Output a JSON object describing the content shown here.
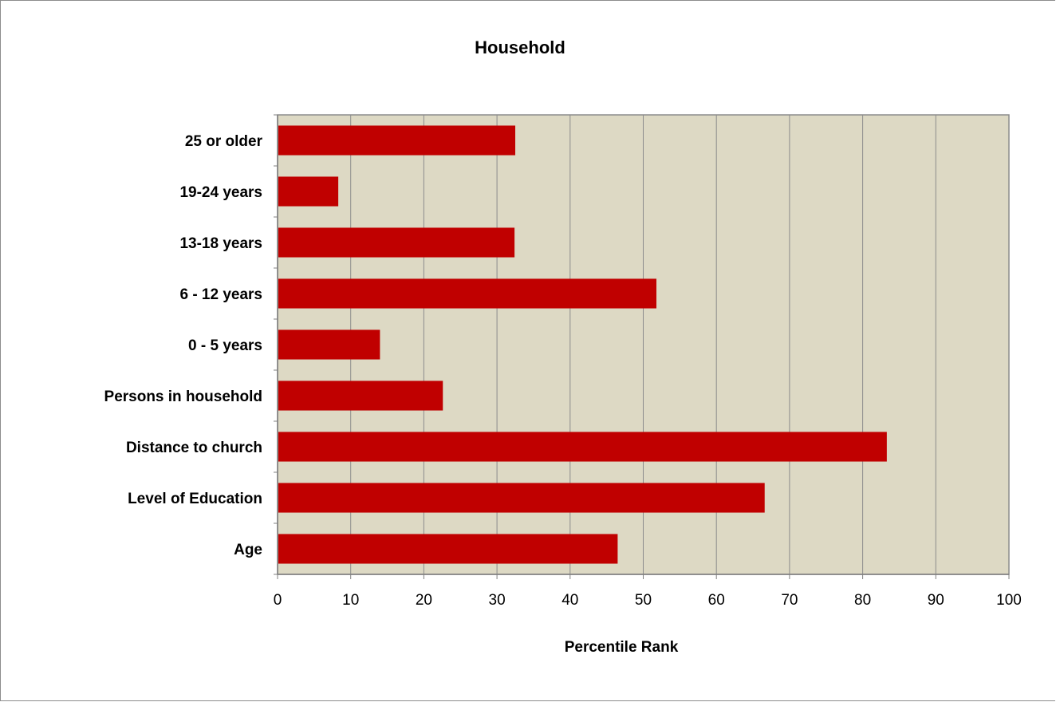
{
  "chart_data": {
    "type": "bar",
    "orientation": "horizontal",
    "title": "Household",
    "xlabel": "Percentile Rank",
    "ylabel": "",
    "xlim": [
      0,
      100
    ],
    "xticks": [
      0,
      10,
      20,
      30,
      40,
      50,
      60,
      70,
      80,
      90,
      100
    ],
    "categories": [
      "25 or older",
      "19-24 years",
      "13-18 years",
      "6 - 12 years",
      "0 - 5 years",
      "Persons in household",
      "Distance to church",
      "Level of Education",
      "Age"
    ],
    "values": [
      32.5,
      8.3,
      32.4,
      51.8,
      14.0,
      22.6,
      83.3,
      66.6,
      46.5
    ],
    "grid": "vertical",
    "legend": "none"
  },
  "colors": {
    "bar": "#c00000",
    "plot_background": "#ddd9c4",
    "gridline": "#8c8c8c",
    "axis": "#808080"
  }
}
